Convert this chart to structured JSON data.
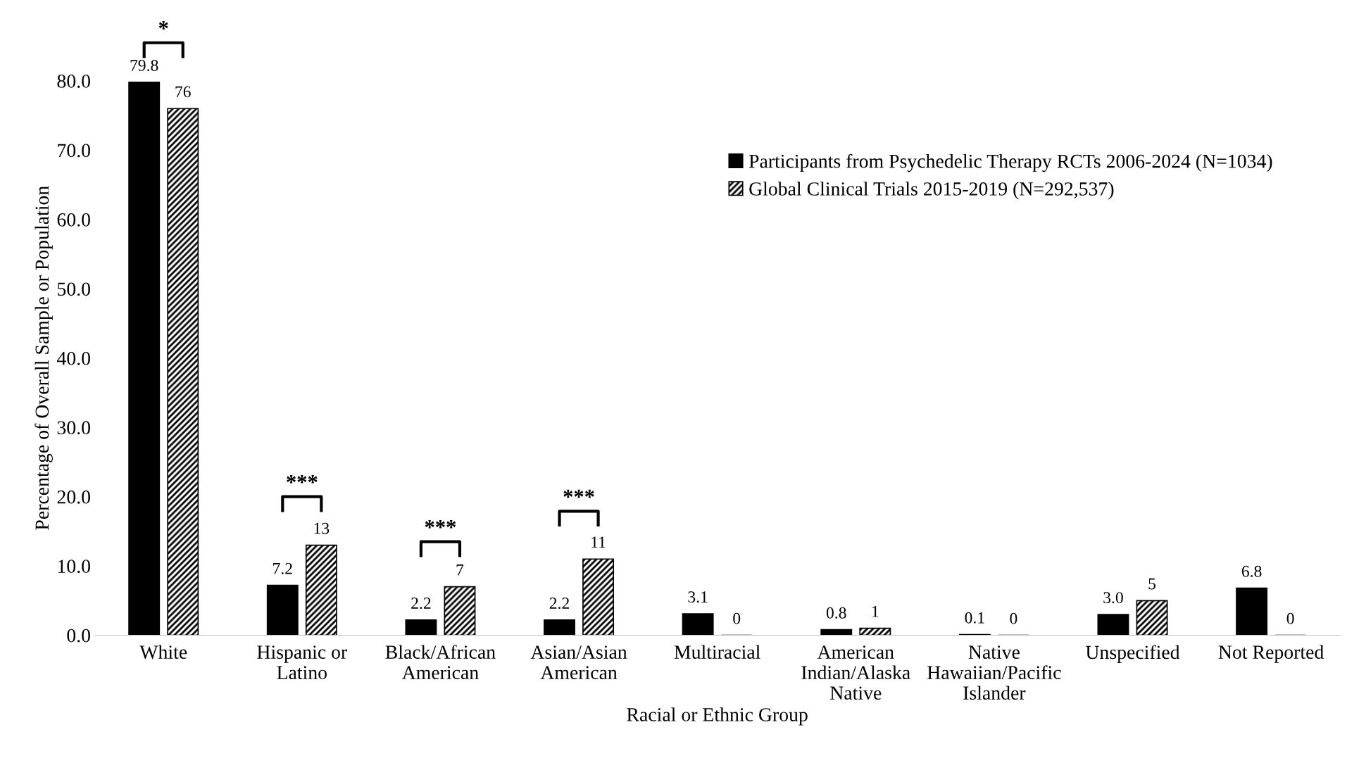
{
  "chart_data": {
    "type": "bar",
    "xlabel": "Racial or Ethnic Group",
    "ylabel": "Percentage of Overall Sample or Population",
    "categories": [
      "White",
      "Hispanic or\nLatino",
      "Black/African\nAmerican",
      "Asian/Asian\nAmerican",
      "Multiracial",
      "American\nIndian/Alaska\nNative",
      "Native\nHawaiian/Pacific\nIslander",
      "Unspecified",
      "Not Reported"
    ],
    "series": [
      {
        "name": "Participants from Psychedelic Therapy RCTs 2006-2024 (N=1034)",
        "color": "#000000",
        "values": [
          79.8,
          7.2,
          2.2,
          2.2,
          3.1,
          0.8,
          0.1,
          3.0,
          6.8
        ],
        "value_labels": [
          "79.8",
          "7.2",
          "2.2",
          "2.2",
          "3.1",
          "0.8",
          "0.1",
          "3.0",
          "6.8"
        ]
      },
      {
        "name": "Global Clinical Trials 2015-2019 (N=292,537)",
        "color": "#000000",
        "values": [
          76,
          13,
          7,
          11,
          0,
          1,
          0,
          5,
          0
        ],
        "value_labels": [
          "76",
          "13",
          "7",
          "11",
          "0",
          "1",
          "0",
          "5",
          "0"
        ]
      }
    ],
    "ylim": [
      0,
      80
    ],
    "yticks": [
      {
        "value": 0,
        "label": "0.0"
      },
      {
        "value": 10,
        "label": "10.0"
      },
      {
        "value": 20,
        "label": "20.0"
      },
      {
        "value": 30,
        "label": "30.0"
      },
      {
        "value": 40,
        "label": "40.0"
      },
      {
        "value": 50,
        "label": "50.0"
      },
      {
        "value": 60,
        "label": "60.0"
      },
      {
        "value": 70,
        "label": "70.0"
      },
      {
        "value": 80,
        "label": "80.0"
      }
    ],
    "annotations": [
      "*",
      "***",
      "***",
      "***"
    ],
    "legend": "top right",
    "grid": false
  }
}
